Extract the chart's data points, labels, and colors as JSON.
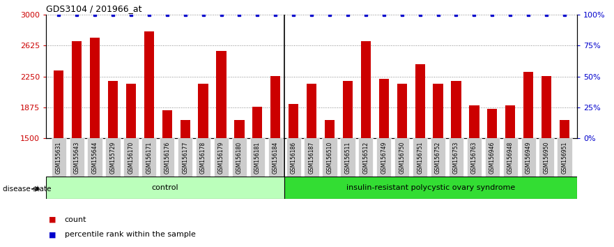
{
  "title": "GDS3104 / 201966_at",
  "categories": [
    "GSM155631",
    "GSM155643",
    "GSM155644",
    "GSM155729",
    "GSM156170",
    "GSM156171",
    "GSM156176",
    "GSM156177",
    "GSM156178",
    "GSM156179",
    "GSM156180",
    "GSM156181",
    "GSM156184",
    "GSM156186",
    "GSM156187",
    "GSM156510",
    "GSM156511",
    "GSM156512",
    "GSM156749",
    "GSM156750",
    "GSM156751",
    "GSM156752",
    "GSM156753",
    "GSM156763",
    "GSM156946",
    "GSM156948",
    "GSM156949",
    "GSM156950",
    "GSM156951"
  ],
  "values": [
    2320,
    2680,
    2720,
    2200,
    2160,
    2800,
    1840,
    1720,
    2160,
    2560,
    1720,
    1880,
    2260,
    1920,
    2160,
    1720,
    2200,
    2680,
    2220,
    2160,
    2400,
    2160,
    2200,
    1900,
    1860,
    1900,
    2310,
    2260,
    1720
  ],
  "bar_color": "#cc0000",
  "percentile_color": "#0000cc",
  "ymin": 1500,
  "ymax": 3000,
  "yticks": [
    1500,
    1875,
    2250,
    2625,
    3000
  ],
  "right_yticks": [
    0,
    25,
    50,
    75,
    100
  ],
  "right_yticklabels": [
    "0%",
    "25%",
    "50%",
    "75%",
    "100%"
  ],
  "n_control": 13,
  "n_disease": 16,
  "control_label": "control",
  "disease_label": "insulin-resistant polycystic ovary syndrome",
  "disease_state_label": "disease state",
  "legend_count": "count",
  "legend_percentile": "percentile rank within the sample",
  "control_color": "#bbffbb",
  "disease_color": "#33dd33",
  "tick_bg_color": "#cccccc",
  "grid_color": "#888888"
}
